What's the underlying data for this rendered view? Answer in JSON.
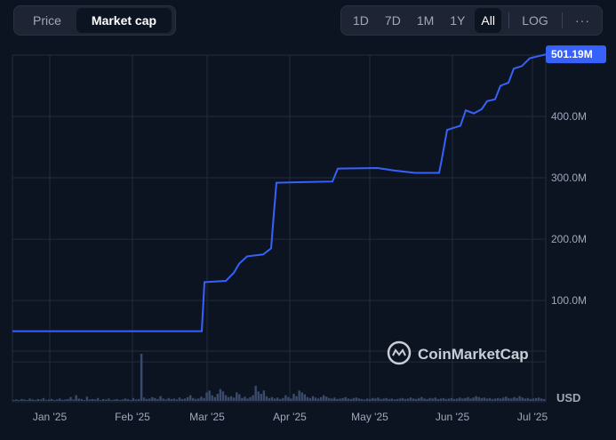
{
  "tabs": {
    "price_label": "Price",
    "market_cap_label": "Market cap"
  },
  "ranges": {
    "d1": "1D",
    "d7": "7D",
    "m1": "1M",
    "y1": "1Y",
    "all": "All",
    "log": "LOG",
    "more": "···"
  },
  "watermark": "CoinMarketCap",
  "colors": {
    "line": "#3861fb",
    "volume": "#3a4a6b",
    "grid": "#222a3a",
    "background": "#0d1421"
  },
  "chart_data": {
    "type": "line",
    "title": "",
    "xlabel": "",
    "ylabel": "",
    "y_unit_label": "USD",
    "last_value_label": "501.19M",
    "y_ticks": [
      {
        "value": 100,
        "label": "100.0M"
      },
      {
        "value": 200,
        "label": "200.0M"
      },
      {
        "value": 300,
        "label": "300.0M"
      },
      {
        "value": 400,
        "label": "400.0M"
      }
    ],
    "x_ticks": [
      {
        "date": "2025-01-15",
        "label": "Jan '25"
      },
      {
        "date": "2025-02-15",
        "label": "Feb '25"
      },
      {
        "date": "2025-03-15",
        "label": "Mar '25"
      },
      {
        "date": "2025-04-15",
        "label": "Apr '25"
      },
      {
        "date": "2025-05-15",
        "label": "May '25"
      },
      {
        "date": "2025-06-15",
        "label": "Jun '25"
      },
      {
        "date": "2025-07-15",
        "label": "Jul '25"
      }
    ],
    "x_range": [
      "2025-01-01",
      "2025-07-20"
    ],
    "ylim": [
      -65,
      500
    ],
    "grid": true,
    "series": [
      {
        "points": [
          [
            "2025-01-01",
            50
          ],
          [
            "2025-02-20",
            50
          ],
          [
            "2025-03-13",
            50
          ],
          [
            "2025-03-14",
            130
          ],
          [
            "2025-03-22",
            132
          ],
          [
            "2025-03-25",
            145
          ],
          [
            "2025-03-27",
            160
          ],
          [
            "2025-03-30",
            172
          ],
          [
            "2025-04-05",
            175
          ],
          [
            "2025-04-08",
            185
          ],
          [
            "2025-04-09",
            240
          ],
          [
            "2025-04-10",
            292
          ],
          [
            "2025-04-20",
            293
          ],
          [
            "2025-05-01",
            294
          ],
          [
            "2025-05-03",
            315
          ],
          [
            "2025-05-18",
            316
          ],
          [
            "2025-05-24",
            312
          ],
          [
            "2025-06-01",
            308
          ],
          [
            "2025-06-10",
            308
          ],
          [
            "2025-06-11",
            330
          ],
          [
            "2025-06-13",
            378
          ],
          [
            "2025-06-18",
            385
          ],
          [
            "2025-06-20",
            410
          ],
          [
            "2025-06-23",
            405
          ],
          [
            "2025-06-26",
            412
          ],
          [
            "2025-06-28",
            425
          ],
          [
            "2025-07-01",
            428
          ],
          [
            "2025-07-03",
            450
          ],
          [
            "2025-07-06",
            455
          ],
          [
            "2025-07-08",
            478
          ],
          [
            "2025-07-11",
            482
          ],
          [
            "2025-07-14",
            495
          ],
          [
            "2025-07-20",
            501.19
          ]
        ]
      }
    ],
    "volume": [
      0.02,
      0.03,
      0.02,
      0.04,
      0.03,
      0.02,
      0.05,
      0.03,
      0.02,
      0.04,
      0.03,
      0.06,
      0.02,
      0.03,
      0.04,
      0.02,
      0.03,
      0.05,
      0.02,
      0.03,
      0.04,
      0.08,
      0.03,
      0.12,
      0.05,
      0.04,
      0.02,
      0.09,
      0.03,
      0.04,
      0.03,
      0.06,
      0.02,
      0.04,
      0.03,
      0.05,
      0.02,
      0.03,
      0.04,
      0.02,
      0.03,
      0.05,
      0.04,
      0.02,
      0.06,
      0.03,
      0.04,
      1.0,
      0.07,
      0.04,
      0.05,
      0.08,
      0.06,
      0.04,
      0.1,
      0.05,
      0.03,
      0.06,
      0.04,
      0.05,
      0.03,
      0.07,
      0.04,
      0.05,
      0.08,
      0.12,
      0.06,
      0.04,
      0.05,
      0.09,
      0.06,
      0.18,
      0.22,
      0.12,
      0.08,
      0.15,
      0.25,
      0.2,
      0.12,
      0.08,
      0.1,
      0.07,
      0.18,
      0.14,
      0.06,
      0.09,
      0.05,
      0.08,
      0.12,
      0.32,
      0.2,
      0.15,
      0.22,
      0.1,
      0.06,
      0.08,
      0.05,
      0.07,
      0.04,
      0.06,
      0.12,
      0.08,
      0.05,
      0.15,
      0.1,
      0.22,
      0.18,
      0.14,
      0.08,
      0.06,
      0.1,
      0.07,
      0.05,
      0.08,
      0.12,
      0.09,
      0.06,
      0.05,
      0.07,
      0.04,
      0.05,
      0.06,
      0.08,
      0.05,
      0.04,
      0.06,
      0.07,
      0.05,
      0.04,
      0.03,
      0.05,
      0.04,
      0.06,
      0.05,
      0.07,
      0.04,
      0.05,
      0.06,
      0.04,
      0.05,
      0.03,
      0.04,
      0.05,
      0.06,
      0.04,
      0.05,
      0.07,
      0.05,
      0.04,
      0.06,
      0.08,
      0.05,
      0.04,
      0.06,
      0.05,
      0.07,
      0.04,
      0.05,
      0.06,
      0.04,
      0.05,
      0.06,
      0.04,
      0.05,
      0.07,
      0.05,
      0.06,
      0.08,
      0.05,
      0.07,
      0.1,
      0.08,
      0.06,
      0.07,
      0.05,
      0.06,
      0.04,
      0.05,
      0.06,
      0.05,
      0.07,
      0.09,
      0.06,
      0.05,
      0.08,
      0.06,
      0.1,
      0.07,
      0.05,
      0.06,
      0.04,
      0.05,
      0.06,
      0.07,
      0.05,
      0.04
    ]
  }
}
